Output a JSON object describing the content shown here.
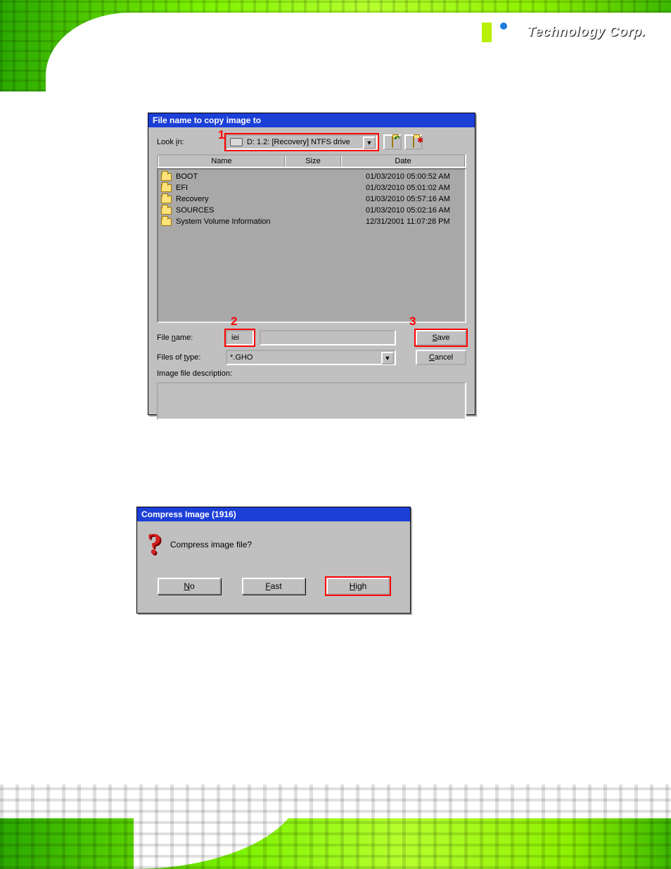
{
  "logo": {
    "company": "Technology Corp.",
    "colors": [
      "#ffffff",
      "#b8f000",
      "#ffffff",
      "#1c7bdc"
    ]
  },
  "dialog1": {
    "title": "File name to copy image to",
    "lookin_label": "Look in:",
    "drive_text": "D: 1.2: [Recovery] NTFS drive",
    "nav_up_label": "↰",
    "nav_new_label": "✱",
    "headers": {
      "name": "Name",
      "size": "Size",
      "date": "Date"
    },
    "files": [
      {
        "name": "BOOT",
        "date": "01/03/2010 05:00:52 AM"
      },
      {
        "name": "EFI",
        "date": "01/03/2010 05:01:02 AM"
      },
      {
        "name": "Recovery",
        "date": "01/03/2010 05:57:16 AM"
      },
      {
        "name": "SOURCES",
        "date": "01/03/2010 05:02:16 AM"
      },
      {
        "name": "System Volume Information",
        "date": "12/31/2001 11:07:28 PM"
      }
    ],
    "filename_label": "File name:",
    "filename_value": "iei",
    "filetype_label": "Files of type:",
    "filetype_value": "*.GHO",
    "save_label": "Save",
    "cancel_label": "Cancel",
    "desc_label": "Image file description:"
  },
  "markers": {
    "m1": "1",
    "m2": "2",
    "m3": "3"
  },
  "dialog2": {
    "title": "Compress Image (1916)",
    "question": "Compress image file?",
    "no_label": "No",
    "fast_label": "Fast",
    "high_label": "High"
  },
  "style": {
    "highlight_color": "#ff0000",
    "titlebar_color": "#1c3fd8",
    "dialog_bg": "#c0c0c0",
    "filelist_bg": "#a8a8a8"
  }
}
